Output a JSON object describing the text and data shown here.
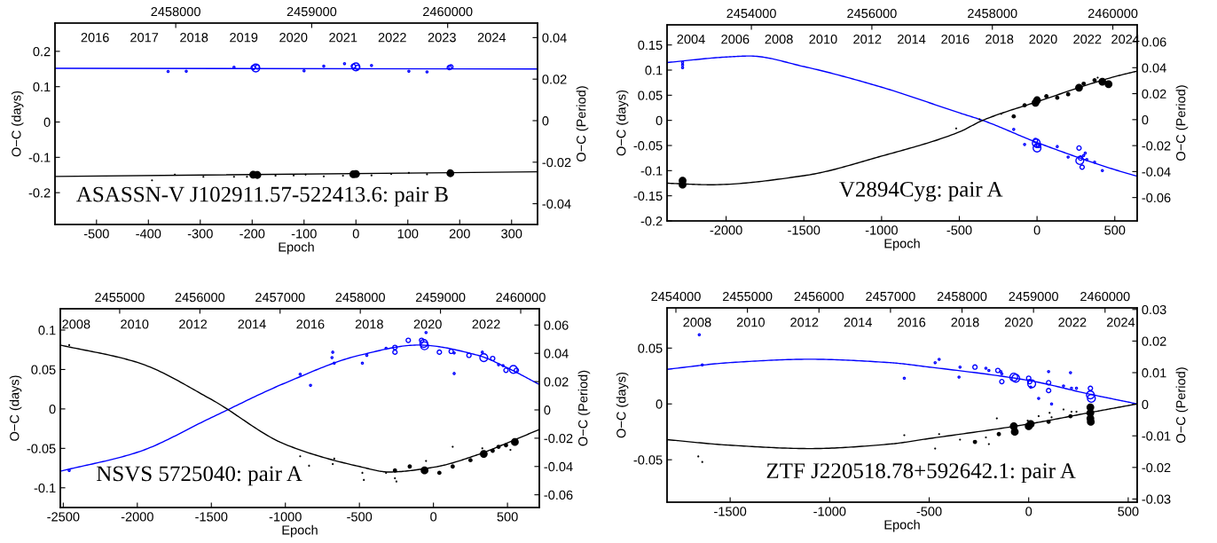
{
  "chart_data": [
    {
      "type": "bubble",
      "xlabel": "Epoch",
      "ylabel": "O−C (days)",
      "y2label": "O−C (Period)",
      "annotations": [
        "ASASSN-V J102911.57-522413.6: pair B",
        "2016",
        "2017",
        "2018",
        "2019",
        "2020",
        "2021",
        "2022",
        "2023",
        "2024"
      ],
      "xlim": [
        -580,
        350
      ],
      "xticks": [
        -500,
        -400,
        -300,
        -200,
        -100,
        0,
        100,
        200,
        300
      ],
      "ylim": [
        -0.29,
        0.28
      ],
      "yticks": [
        -0.2,
        -0.1,
        0,
        0.1,
        0.2
      ],
      "y2lim": [
        -0.05,
        0.047
      ],
      "y2ticks": [
        -0.04,
        -0.02,
        0,
        0.02,
        0.04
      ],
      "x2lim": [
        2457112,
        2460661
      ],
      "x2ticks": [
        2458000,
        2459000,
        2460000
      ],
      "series": [
        {
          "type": "line",
          "color": "#0000ff",
          "x": [
            -580,
            350
          ],
          "values": [
            0.152,
            0.15
          ]
        },
        {
          "type": "line",
          "color": "#000000",
          "x": [
            -580,
            350
          ],
          "values": [
            -0.154,
            -0.141
          ]
        },
        {
          "color": "#0000ff",
          "x": [
            -362,
            -327,
            -235,
            -198,
            -193,
            -190,
            -100,
            -62,
            -22,
            -5,
            0,
            3,
            30,
            102,
            137,
            180,
            183
          ],
          "values": [
            0.143,
            0.144,
            0.155,
            0.154,
            0.153,
            0.156,
            0.145,
            0.158,
            0.165,
            0.158,
            0.156,
            0.155,
            0.16,
            0.144,
            0.142,
            0.154,
            0.156
          ],
          "sizes": [
            0.06,
            0.06,
            0.06,
            0.3,
            1,
            0.3,
            0.06,
            0.06,
            0.06,
            0.3,
            1,
            0.3,
            0.06,
            0.06,
            0.06,
            0.3,
            0.3
          ]
        },
        {
          "color": "#000000",
          "x": [
            -393,
            -349,
            -294,
            -235,
            -210,
            -198,
            -190,
            -155,
            -120,
            -97,
            -62,
            -25,
            -5,
            0,
            3,
            30,
            68,
            102,
            137,
            182
          ],
          "values": [
            -0.165,
            -0.149,
            -0.155,
            -0.155,
            -0.155,
            -0.149,
            -0.15,
            -0.152,
            -0.151,
            -0.149,
            -0.154,
            -0.152,
            -0.148,
            -0.147,
            -0.148,
            -0.151,
            -0.147,
            -0.144,
            -0.148,
            -0.145
          ],
          "sizes": [
            0.06,
            0.06,
            0.06,
            0.06,
            0.06,
            1,
            1,
            0.06,
            0.06,
            0.06,
            0.06,
            0.06,
            1,
            1,
            0.3,
            0.06,
            0.06,
            0.06,
            0.06,
            1
          ]
        }
      ]
    },
    {
      "type": "bubble",
      "xlabel": "Epoch",
      "ylabel": "O−C (days)",
      "y2label": "O−C (Period)",
      "annotations": [
        "V2894Cyg: pair A",
        "2004",
        "2006",
        "2008",
        "2010",
        "2012",
        "2014",
        "2016",
        "2018",
        "2020",
        "2022",
        "2024"
      ],
      "xlim": [
        -2380,
        644
      ],
      "xticks": [
        -2000,
        -1500,
        -1000,
        -500,
        0,
        500
      ],
      "ylim": [
        -0.2,
        0.19
      ],
      "yticks": [
        -0.2,
        -0.15,
        -0.1,
        -0.05,
        0,
        0.05,
        0.1,
        0.15
      ],
      "y2lim": [
        -0.078,
        0.073
      ],
      "y2ticks": [
        -0.06,
        -0.04,
        -0.02,
        0,
        0.02,
        0.04,
        0.06
      ],
      "x2lim": [
        2452600,
        2460404
      ],
      "x2ticks": [
        2454000,
        2456000,
        2458000,
        2460000
      ],
      "series": [
        {
          "type": "line",
          "color": "#0000ff",
          "x": [
            -2380,
            -2000,
            -1850,
            -1500,
            -1000,
            -500,
            -350,
            0,
            500,
            644
          ],
          "values": [
            0.115,
            0.126,
            0.128,
            0.107,
            0.066,
            0.015,
            0,
            -0.044,
            -0.098,
            -0.111
          ]
        },
        {
          "type": "line",
          "color": "#000000",
          "x": [
            -2380,
            -2100,
            -1500,
            -1000,
            -500,
            -350,
            0,
            500,
            644
          ],
          "values": [
            -0.125,
            -0.128,
            -0.11,
            -0.071,
            -0.023,
            0,
            0.037,
            0.087,
            0.098
          ]
        },
        {
          "color": "#0000ff",
          "x": [
            -2280,
            -2280,
            -2280,
            -150,
            -80,
            -10,
            -5,
            0,
            0,
            10,
            130,
            200,
            270,
            275,
            280,
            290,
            300,
            310,
            320,
            370,
            420
          ],
          "values": [
            0.115,
            0.11,
            0.105,
            -0.018,
            -0.048,
            -0.04,
            -0.045,
            -0.05,
            -0.055,
            -0.05,
            -0.052,
            -0.073,
            -0.055,
            -0.08,
            -0.075,
            -0.093,
            -0.07,
            -0.065,
            -0.078,
            -0.083,
            -0.1
          ],
          "sizes": [
            0.06,
            0.06,
            0.06,
            0.06,
            0.06,
            0.3,
            1,
            0.3,
            1,
            0.3,
            0.06,
            0.06,
            0.3,
            1,
            0.3,
            0.3,
            0.06,
            0.06,
            0.06,
            0.06,
            0.06
          ]
        },
        {
          "color": "#000000",
          "x": [
            -2280,
            -2280,
            -520,
            -370,
            -230,
            -150,
            -80,
            -10,
            0,
            60,
            130,
            200,
            270,
            300,
            370,
            390,
            420,
            460
          ],
          "values": [
            -0.12,
            -0.128,
            -0.016,
            0.002,
            0.013,
            0.008,
            0.03,
            0.035,
            0.04,
            0.048,
            0.045,
            0.052,
            0.065,
            0.073,
            0.08,
            0.085,
            0.077,
            0.072
          ],
          "sizes": [
            1,
            1,
            0.06,
            0.06,
            0.06,
            0.3,
            0.3,
            1,
            1,
            0.3,
            0.3,
            0.3,
            1,
            0.3,
            0.3,
            0.06,
            1,
            1
          ]
        }
      ]
    },
    {
      "type": "bubble",
      "xlabel": "Epoch",
      "ylabel": "O−C (days)",
      "y2label": "O−C (Period)",
      "annotations": [
        "NSVS 5725040: pair A",
        "2008",
        "2010",
        "2012",
        "2014",
        "2016",
        "2018",
        "2020",
        "2022"
      ],
      "xlim": [
        -2520,
        715
      ],
      "xticks": [
        -2500,
        -2000,
        -1500,
        -1000,
        -500,
        0,
        500
      ],
      "ylim": [
        -0.125,
        0.127
      ],
      "yticks": [
        -0.1,
        -0.05,
        0,
        0.05,
        0.1
      ],
      "y2lim": [
        -0.069,
        0.0715
      ],
      "y2ticks": [
        -0.06,
        -0.04,
        -0.02,
        0,
        0.02,
        0.04,
        0.06
      ],
      "x2lim": [
        2454260,
        2460232
      ],
      "x2ticks": [
        2455000,
        2456000,
        2457000,
        2458000,
        2459000,
        2460000
      ],
      "series": [
        {
          "type": "line",
          "color": "#0000ff",
          "x": [
            -2520,
            -2000,
            -1500,
            -1000,
            -500,
            -100,
            300,
            500,
            715
          ],
          "values": [
            -0.079,
            -0.055,
            -0.011,
            0.033,
            0.068,
            0.081,
            0.068,
            0.052,
            0.031
          ]
        },
        {
          "type": "line",
          "color": "#000000",
          "x": [
            -2520,
            -2000,
            -1500,
            -1000,
            -500,
            -300,
            0,
            300,
            500,
            715
          ],
          "values": [
            0.081,
            0.059,
            0.012,
            -0.045,
            -0.073,
            -0.08,
            -0.074,
            -0.058,
            -0.043,
            -0.026
          ]
        },
        {
          "color": "#0000ff",
          "x": [
            -2460,
            -900,
            -830,
            -680,
            -685,
            -670,
            -480,
            -450,
            -320,
            -260,
            -260,
            -170,
            -80,
            -65,
            -60,
            -50,
            40,
            120,
            140,
            140,
            240,
            330,
            340,
            400,
            440,
            470,
            490,
            540,
            560
          ],
          "values": [
            -0.078,
            0.044,
            0.03,
            0.072,
            0.065,
            0.058,
            0.058,
            0.068,
            0.077,
            0.078,
            0.072,
            0.087,
            0.087,
            0.083,
            0.08,
            0.097,
            0.072,
            0.073,
            0.045,
            0.071,
            0.068,
            0.072,
            0.065,
            0.064,
            0.056,
            0.055,
            0.049,
            0.05,
            0.049
          ],
          "sizes": [
            0.06,
            0.06,
            0.06,
            0.06,
            0.06,
            0.06,
            0.06,
            0.06,
            0.06,
            0.3,
            0.3,
            0.3,
            0.3,
            1,
            1,
            0.06,
            0.3,
            0.3,
            0.06,
            0.06,
            0.3,
            0.06,
            1,
            0.3,
            0.06,
            0.06,
            0.3,
            1,
            0.3
          ]
        },
        {
          "color": "#000000",
          "x": [
            -2460,
            -900,
            -840,
            -680,
            -670,
            -480,
            -470,
            -320,
            -260,
            -260,
            -250,
            -160,
            -60,
            -50,
            40,
            130,
            130,
            250,
            330,
            340,
            400,
            440,
            490,
            520,
            550
          ],
          "values": [
            0.081,
            -0.06,
            -0.072,
            -0.07,
            -0.063,
            -0.081,
            -0.09,
            -0.081,
            -0.078,
            -0.088,
            -0.092,
            -0.073,
            -0.078,
            -0.066,
            -0.081,
            -0.048,
            -0.073,
            -0.065,
            -0.05,
            -0.057,
            -0.053,
            -0.048,
            -0.046,
            -0.052,
            -0.042
          ],
          "sizes": [
            0.06,
            0.06,
            0.06,
            0.06,
            0.06,
            0.06,
            0.06,
            0.06,
            0.3,
            0.06,
            0.06,
            0.3,
            1,
            0.06,
            0.3,
            0.06,
            0.3,
            0.3,
            0.06,
            1,
            0.3,
            0.3,
            0.3,
            0.06,
            1
          ]
        }
      ]
    },
    {
      "type": "bubble",
      "xlabel": "Epoch",
      "ylabel": "O−C (days)",
      "y2label": "O−C (Period)",
      "annotations": [
        "ZTF J220518.78+592642.1: pair A",
        "2008",
        "2010",
        "2012",
        "2014",
        "2016",
        "2018",
        "2020",
        "2022",
        "2024"
      ],
      "xlim": [
        -1817,
        545
      ],
      "xticks": [
        -1500,
        -1000,
        -500,
        0,
        500
      ],
      "ylim": [
        -0.088,
        0.086
      ],
      "yticks": [
        -0.05,
        0,
        0.05
      ],
      "y2lim": [
        -0.031,
        0.0305
      ],
      "y2ticks": [
        -0.03,
        -0.02,
        -0.01,
        0,
        0.01,
        0.02,
        0.03
      ],
      "x2lim": [
        2453876,
        2460449
      ],
      "x2ticks": [
        2454000,
        2455000,
        2456000,
        2457000,
        2458000,
        2459000,
        2460000
      ],
      "series": [
        {
          "type": "line",
          "color": "#0000ff",
          "x": [
            -1817,
            -1500,
            -1100,
            -700,
            -500,
            0,
            300,
            545
          ],
          "values": [
            0.031,
            0.037,
            0.04,
            0.037,
            0.033,
            0.021,
            0.009,
            0
          ]
        },
        {
          "type": "line",
          "color": "#000000",
          "x": [
            -1817,
            -1500,
            -1100,
            -700,
            -500,
            0,
            300,
            545
          ],
          "values": [
            -0.032,
            -0.037,
            -0.04,
            -0.036,
            -0.031,
            -0.018,
            -0.008,
            0
          ]
        },
        {
          "color": "#0000ff",
          "x": [
            -1655,
            -1640,
            -625,
            -470,
            -450,
            -345,
            -350,
            -270,
            -215,
            -200,
            -155,
            -140,
            -135,
            -135,
            -75,
            -65,
            0,
            5,
            10,
            15,
            50,
            100,
            100,
            100,
            115,
            175,
            210,
            215,
            240,
            310,
            310,
            315
          ],
          "values": [
            0.062,
            0.035,
            0.023,
            0.037,
            0.04,
            0.033,
            0.024,
            0.033,
            0.032,
            0.03,
            0.03,
            0.029,
            0.027,
            0.02,
            0.024,
            0.023,
            0.023,
            0.02,
            0.015,
            0.018,
            0.005,
            0.029,
            0.019,
            0.012,
            0,
            0.016,
            0.028,
            0.014,
            0.014,
            0.014,
            0.008,
            0.005
          ],
          "sizes": [
            0.06,
            0.06,
            0.06,
            0.06,
            0.06,
            0.06,
            0.06,
            0.3,
            0.06,
            0.06,
            0.3,
            0.06,
            0.06,
            0.3,
            1,
            1,
            0.3,
            0.3,
            0.06,
            1,
            0.06,
            0.06,
            0.3,
            0.3,
            0.06,
            0.06,
            0.06,
            0.06,
            0.06,
            0.3,
            1,
            1
          ]
        },
        {
          "color": "#000000",
          "x": [
            -1660,
            -1640,
            -625,
            -470,
            -450,
            -345,
            -270,
            -215,
            -200,
            -160,
            -150,
            -75,
            -70,
            -5,
            0,
            10,
            50,
            100,
            105,
            115,
            175,
            210,
            215,
            240,
            310,
            310,
            310,
            312
          ],
          "values": [
            -0.047,
            -0.052,
            -0.028,
            -0.04,
            -0.027,
            -0.032,
            -0.034,
            -0.03,
            -0.036,
            -0.013,
            -0.027,
            -0.02,
            -0.025,
            -0.015,
            -0.02,
            -0.018,
            -0.011,
            -0.016,
            -0.008,
            -0.012,
            -0.005,
            -0.011,
            -0.007,
            -0.007,
            -0.003,
            -0.008,
            -0.013,
            -0.016
          ],
          "sizes": [
            0.06,
            0.06,
            0.06,
            0.06,
            0.06,
            0.06,
            0.3,
            0.06,
            0.06,
            0.06,
            0.3,
            1,
            1,
            0.06,
            1,
            1,
            0.06,
            0.3,
            0.06,
            0.06,
            0.06,
            0.3,
            0.06,
            0.06,
            1,
            1,
            1,
            1
          ]
        }
      ]
    }
  ]
}
